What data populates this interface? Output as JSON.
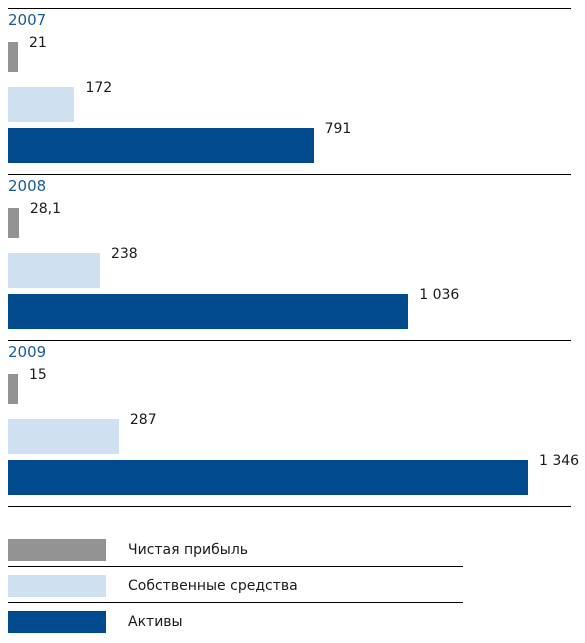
{
  "chart_data": {
    "type": "bar",
    "orientation": "horizontal",
    "categories": [
      "2007",
      "2008",
      "2009"
    ],
    "series": [
      {
        "name": "Чистая прибыль",
        "color": "#939393",
        "values": [
          21,
          28.1,
          15
        ],
        "labels": [
          "21",
          "28,1",
          "15"
        ]
      },
      {
        "name": "Собственные средства",
        "color": "#cfe0f1",
        "values": [
          172,
          238,
          287
        ],
        "labels": [
          "172",
          "238",
          "287"
        ]
      },
      {
        "name": "Активы",
        "color": "#004a8d",
        "values": [
          791,
          1036,
          1346
        ],
        "labels": [
          "791",
          "1 036",
          "1 346"
        ]
      }
    ],
    "xlim": [
      0,
      1346
    ],
    "grid": false,
    "legend_position": "bottom"
  }
}
